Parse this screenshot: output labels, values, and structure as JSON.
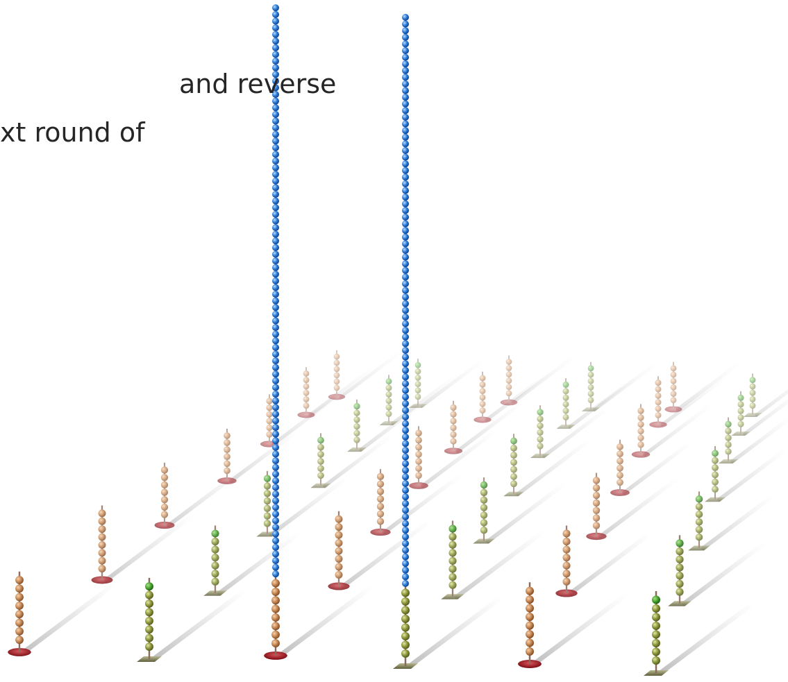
{
  "text": {
    "lines": [
      "and reverse",
      "xt round of"
    ]
  }
}
